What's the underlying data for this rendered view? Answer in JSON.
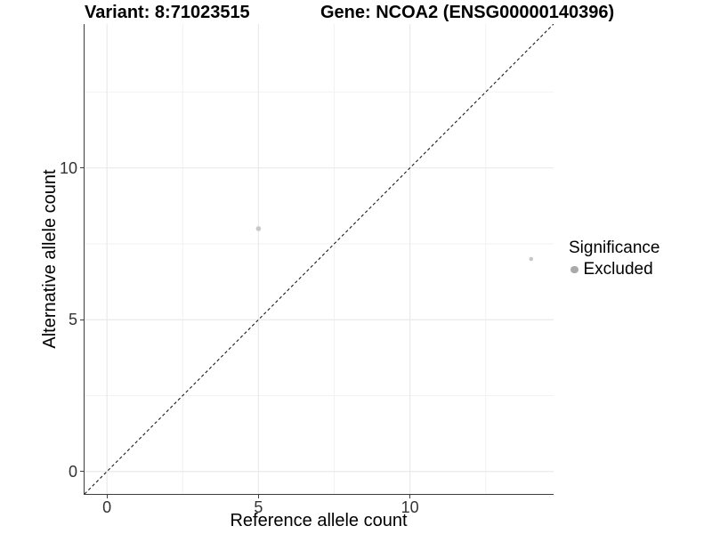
{
  "header": {
    "left_title": "Variant: 8:71023515",
    "right_title": "Gene: NCOA2 (ENSG00000140396)"
  },
  "chart_data": {
    "type": "scatter",
    "title_left": "Variant: 8:71023515",
    "title_right": "Gene: NCOA2 (ENSG00000140396)",
    "xlabel": "Reference allele count",
    "ylabel": "Alternative allele count",
    "xlim": [
      -0.74,
      14.74
    ],
    "ylim": [
      -0.74,
      14.74
    ],
    "x_major_ticks": [
      0,
      5,
      10
    ],
    "y_major_ticks": [
      0,
      5,
      10
    ],
    "x_minor_ticks": [
      2.5,
      7.5,
      12.5
    ],
    "y_minor_ticks": [
      2.5,
      7.5,
      12.5
    ],
    "grid": true,
    "series": [
      {
        "name": "Excluded",
        "color": "#c8c8c8",
        "points": [
          {
            "x": 5,
            "y": 8,
            "r": 2.8
          },
          {
            "x": 14,
            "y": 7,
            "r": 2.3
          }
        ]
      }
    ],
    "reference_line": {
      "kind": "diagonal",
      "equation": "y = x",
      "style": "dashed",
      "color": "#1a1a1a"
    },
    "legend": {
      "title": "Significance",
      "position": "right",
      "items": [
        {
          "label": "Excluded",
          "marker_color": "#aaaaaa"
        }
      ]
    }
  },
  "colors": {
    "background": "#ffffff",
    "major_grid": "#eaeaea",
    "minor_grid": "#f2f2f2",
    "axis_line": "#3e3e3e",
    "tick_label": "#333333",
    "point": "#c8c8c8",
    "legend_marker": "#aaaaaa"
  }
}
